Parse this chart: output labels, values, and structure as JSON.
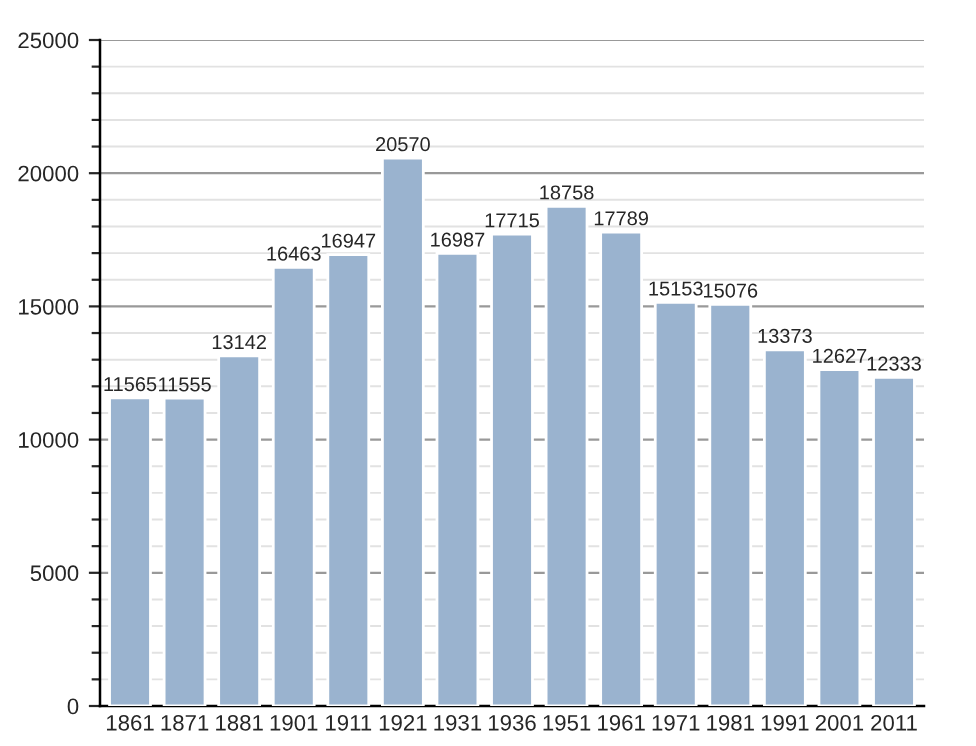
{
  "chart_data": {
    "type": "bar",
    "categories": [
      "1861",
      "1871",
      "1881",
      "1901",
      "1911",
      "1921",
      "1931",
      "1936",
      "1951",
      "1961",
      "1971",
      "1981",
      "1991",
      "2001",
      "2011"
    ],
    "values": [
      11565,
      11555,
      13142,
      16463,
      16947,
      20570,
      16987,
      17715,
      18758,
      17789,
      15153,
      15076,
      13373,
      12627,
      12333
    ],
    "color": "#9ab3cf",
    "ylim": [
      0,
      25000
    ],
    "yticks": [
      0,
      5000,
      10000,
      15000,
      20000,
      25000
    ],
    "grid": "y",
    "data_labels": true
  }
}
